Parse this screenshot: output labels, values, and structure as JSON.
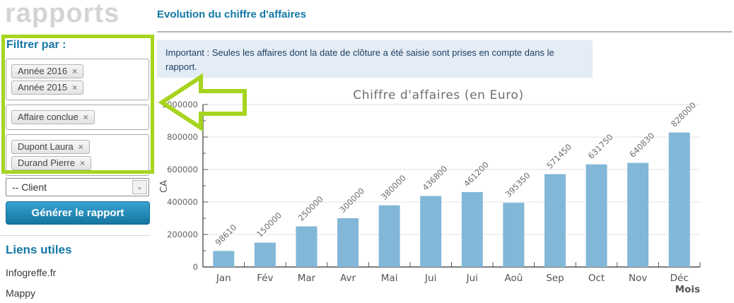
{
  "page": {
    "app_title": "rapports"
  },
  "sidebar": {
    "filter_heading": "Filtrer par :",
    "filter_groups": [
      {
        "tags": [
          "Année 2016",
          "Année 2015"
        ]
      },
      {
        "tags": [
          "Affaire conclue"
        ]
      },
      {
        "tags": [
          "Dupont Laura",
          "Durand Pierre"
        ]
      }
    ],
    "tag_remove_glyph": "×",
    "client_select": {
      "value": "-- Client",
      "chevron_glyph": "⌄"
    },
    "generate_button_label": "Générer le rapport",
    "links_heading": "Liens utiles",
    "links": [
      "Infogreffe.fr",
      "Mappy"
    ]
  },
  "main": {
    "page_title": "Evolution du chiffre d'affaires",
    "notice_text": "Important : Seules les affaires dont la date de clôture a été saisie sont prises en compte dans le rapport."
  },
  "annotations": {
    "highlight_color": "#a6d41f",
    "shapes": [
      "rectangle-around-filters",
      "left-pointing-block-arrow"
    ]
  },
  "chart_data": {
    "type": "bar",
    "title": "Chiffre d'affaires (en Euro)",
    "xlabel": "Mois",
    "ylabel": "CA",
    "categories": [
      "Jan",
      "Fév",
      "Mar",
      "Avr",
      "Mai",
      "Jui",
      "Jui",
      "Aoû",
      "Sep",
      "Oct",
      "Nov",
      "Déc"
    ],
    "values": [
      98610,
      150000,
      250000,
      300000,
      380000,
      436800,
      461200,
      395350,
      571450,
      631750,
      640830,
      828000
    ],
    "ylim": [
      0,
      1000000
    ],
    "ytick_step": 200000,
    "yticks": [
      0,
      200000,
      400000,
      600000,
      800000,
      1000000
    ],
    "grid": true,
    "legend": "none",
    "bar_color": "#82b7d8",
    "axis_color": "#545454",
    "grid_color": "#e3e3e5",
    "label_color": "#6e6e6e",
    "value_labels_rotated_deg": -45
  }
}
